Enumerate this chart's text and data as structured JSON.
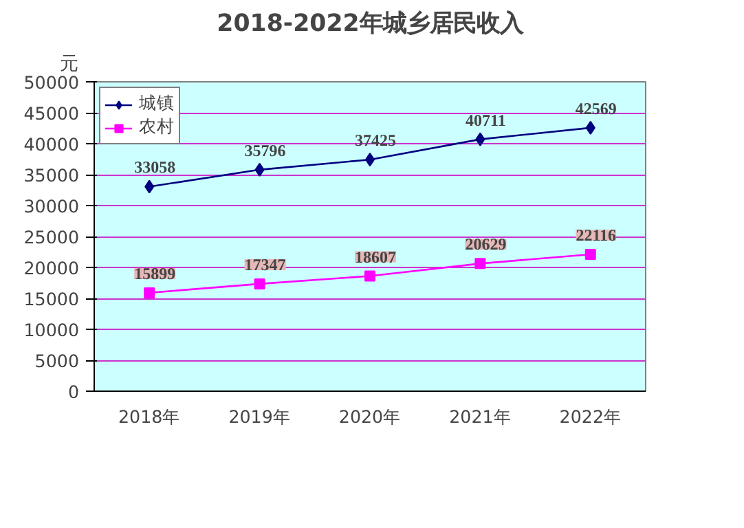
{
  "chart_data": {
    "type": "line",
    "title": "2018-2022年城乡居民收入",
    "ylabel": "元",
    "categories": [
      "2018年",
      "2019年",
      "2020年",
      "2021年",
      "2022年"
    ],
    "series": [
      {
        "name": "城镇",
        "color": "#000080",
        "marker": "diamond",
        "values": [
          33058,
          35796,
          37425,
          40711,
          42569
        ]
      },
      {
        "name": "农村",
        "color": "#ff00ff",
        "marker": "square",
        "values": [
          15899,
          17347,
          18607,
          20629,
          22116
        ]
      }
    ],
    "ylim": [
      0,
      50000
    ],
    "yticks": [
      0,
      5000,
      10000,
      15000,
      20000,
      25000,
      30000,
      35000,
      40000,
      45000,
      50000
    ],
    "grid": "y",
    "legend": "top left",
    "data_labels": true,
    "line_style": "solid"
  }
}
